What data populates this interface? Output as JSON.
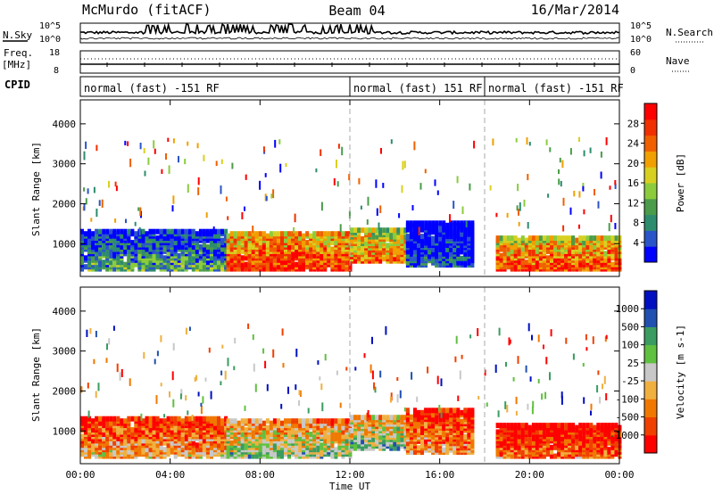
{
  "header": {
    "left_title": "McMurdo (fitACF)",
    "center_title": "Beam 04",
    "right_title": "16/Mar/2014"
  },
  "labels": {
    "nsky": "N.Sky",
    "freq_top": "Freq.",
    "freq_unit": "[MHz]",
    "cpid": "CPID",
    "nsearch": "N.Search",
    "nave": "Nave",
    "nsky_top": "10^5",
    "nsky_bottom": "10^0",
    "nsearch_top": "10^5",
    "nsearch_bottom": "10^0",
    "freq_top_val": "18",
    "freq_bottom_val": "8",
    "nave_top_val": "60",
    "nave_bottom_val": "0"
  },
  "cpid_segments": [
    {
      "start_h": 0,
      "end_h": 12,
      "text": "normal (fast) -151 RF"
    },
    {
      "start_h": 12,
      "end_h": 18,
      "text": "normal (fast) 151 RF"
    },
    {
      "start_h": 18,
      "end_h": 24,
      "text": "normal (fast) -151 RF"
    }
  ],
  "chart_data": [
    {
      "type": "heatmap",
      "name": "power",
      "ylabel": "Slant Range [km]",
      "xlabel": "Time UT",
      "xlim": [
        0,
        24
      ],
      "ylim": [
        180,
        4600
      ],
      "x_tick_labels": [
        "00:00",
        "04:00",
        "08:00",
        "12:00",
        "16:00",
        "20:00",
        "00:00"
      ],
      "x_ticks_hours": [
        0,
        4,
        8,
        12,
        16,
        20,
        24
      ],
      "y_ticks": [
        1000,
        2000,
        3000,
        4000
      ],
      "colorbar": {
        "label": "Power [dB]",
        "ticks": [
          "28",
          "24",
          "20",
          "16",
          "12",
          "8",
          "4"
        ],
        "colors": [
          "#0000ff",
          "#2a55c8",
          "#2d8c6e",
          "#4a9c4a",
          "#8ccc3c",
          "#d8d020",
          "#f0a000",
          "#f06000",
          "#f03000",
          "#ff0000"
        ]
      },
      "bands": [
        {
          "t0": 0.0,
          "t1": 6.5,
          "lo": 300,
          "hi": 1250,
          "level": 0.35
        },
        {
          "t0": 6.5,
          "t1": 12.0,
          "lo": 300,
          "hi": 1200,
          "level": 0.9
        },
        {
          "t0": 12.0,
          "t1": 14.5,
          "lo": 500,
          "hi": 1300,
          "level": 0.75
        },
        {
          "t0": 14.5,
          "t1": 17.5,
          "lo": 400,
          "hi": 1500,
          "level": 0.15
        },
        {
          "t0": 18.5,
          "t1": 24.0,
          "lo": 300,
          "hi": 1100,
          "level": 0.85
        }
      ]
    },
    {
      "type": "heatmap",
      "name": "velocity",
      "ylabel": "Slant Range [km]",
      "xlabel": "Time UT",
      "xlim": [
        0,
        24
      ],
      "ylim": [
        180,
        4600
      ],
      "x_tick_labels": [
        "00:00",
        "04:00",
        "08:00",
        "12:00",
        "16:00",
        "20:00",
        "00:00"
      ],
      "x_ticks_hours": [
        0,
        4,
        8,
        12,
        16,
        20,
        24
      ],
      "y_ticks": [
        1000,
        2000,
        3000,
        4000
      ],
      "colorbar": {
        "label": "Velocity [m s-1]",
        "ticks": [
          "1000",
          "500",
          "100",
          "25",
          "-25",
          "-100",
          "-500",
          "-1000"
        ],
        "colors": [
          "#ff0000",
          "#f04000",
          "#f07800",
          "#f0b040",
          "#c8c8c8",
          "#60c040",
          "#3a9c60",
          "#2050b0",
          "#0010c0"
        ]
      },
      "bands": [
        {
          "t0": 0.0,
          "t1": 6.5,
          "lo": 300,
          "hi": 1250,
          "level": 0.4
        },
        {
          "t0": 6.5,
          "t1": 12.0,
          "lo": 300,
          "hi": 1200,
          "level": 0.6
        },
        {
          "t0": 12.0,
          "t1": 14.5,
          "lo": 500,
          "hi": 1300,
          "level": 0.65
        },
        {
          "t0": 14.5,
          "t1": 17.5,
          "lo": 400,
          "hi": 1500,
          "level": 0.35
        },
        {
          "t0": 18.5,
          "t1": 24.0,
          "lo": 300,
          "hi": 1100,
          "level": 0.25
        }
      ]
    }
  ]
}
